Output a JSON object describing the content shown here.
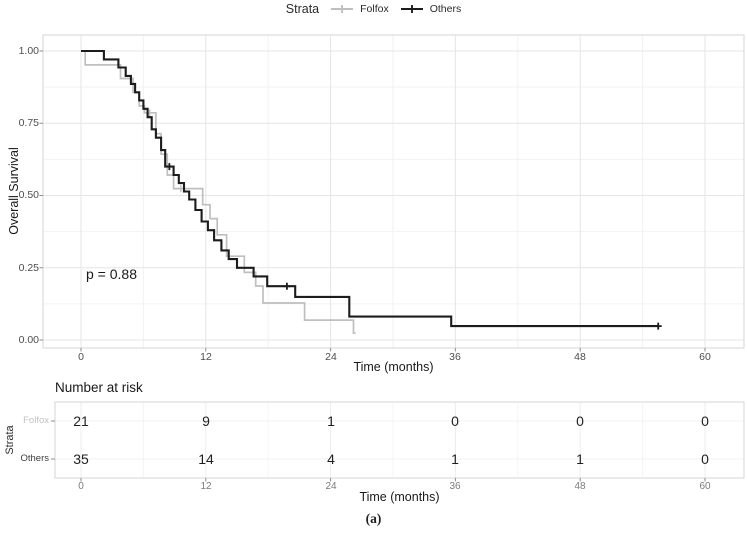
{
  "legend": {
    "title": "Strata",
    "items": [
      {
        "label": "Folfox",
        "color": "#bfbfbf"
      },
      {
        "label": "Others",
        "color": "#1c1c1c"
      }
    ]
  },
  "main_plot": {
    "ylabel": "Overall Survival",
    "xlabel": "Time (months)",
    "p_value_label": "p = 0.88",
    "y_ticks": [
      "1.00",
      "0.75",
      "0.50",
      "0.25",
      "0.00"
    ],
    "x_ticks": [
      "0",
      "12",
      "24",
      "36",
      "48",
      "60"
    ]
  },
  "risk_table": {
    "title": "Number at risk",
    "ylabel": "Strata",
    "xlabel": "Time (months)",
    "x_ticks": [
      "0",
      "12",
      "24",
      "36",
      "48",
      "60"
    ],
    "rows": [
      {
        "label": "Folfox",
        "values": [
          "21",
          "9",
          "1",
          "0",
          "0",
          "0"
        ]
      },
      {
        "label": "Others",
        "values": [
          "35",
          "14",
          "4",
          "1",
          "1",
          "0"
        ]
      }
    ]
  },
  "caption": "(a)",
  "chart_data": {
    "type": "line",
    "subtype": "kaplan-meier-step",
    "title": "",
    "xlabel": "Time (months)",
    "ylabel": "Overall Survival",
    "xlim": [
      0,
      60
    ],
    "ylim": [
      0,
      1
    ],
    "x_ticks": [
      0,
      12,
      24,
      36,
      48,
      60
    ],
    "y_ticks": [
      0,
      0.25,
      0.5,
      0.75,
      1.0
    ],
    "grid": true,
    "legend_position": "top",
    "legend_title": "Strata",
    "p_value": "p = 0.88",
    "series": [
      {
        "name": "Folfox",
        "color": "#bfbfbf",
        "start": [
          0,
          1.0
        ],
        "steps": [
          [
            0.4,
            0.952
          ],
          [
            3.8,
            0.905
          ],
          [
            5.0,
            0.857
          ],
          [
            5.6,
            0.81
          ],
          [
            6.1,
            0.786
          ],
          [
            7.2,
            0.714
          ],
          [
            7.7,
            0.643
          ],
          [
            8.3,
            0.571
          ],
          [
            8.9,
            0.524
          ],
          [
            11.7,
            0.468
          ],
          [
            12.4,
            0.42
          ],
          [
            13.1,
            0.364
          ],
          [
            14.0,
            0.29
          ],
          [
            15.7,
            0.234
          ],
          [
            16.8,
            0.187
          ],
          [
            17.5,
            0.128
          ],
          [
            21.5,
            0.069
          ],
          [
            26.2,
            0.024
          ]
        ],
        "end_month": 26.4,
        "censor_points": [
          [
            6.6,
            0.786
          ],
          [
            9.6,
            0.524
          ]
        ]
      },
      {
        "name": "Others",
        "color": "#1c1c1c",
        "start": [
          0,
          1.0
        ],
        "steps": [
          [
            2.2,
            0.971
          ],
          [
            3.6,
            0.943
          ],
          [
            4.3,
            0.914
          ],
          [
            4.8,
            0.886
          ],
          [
            5.2,
            0.857
          ],
          [
            5.6,
            0.829
          ],
          [
            6.0,
            0.8
          ],
          [
            6.4,
            0.771
          ],
          [
            6.8,
            0.729
          ],
          [
            7.2,
            0.7
          ],
          [
            7.7,
            0.657
          ],
          [
            8.1,
            0.6
          ],
          [
            8.9,
            0.571
          ],
          [
            9.4,
            0.543
          ],
          [
            9.9,
            0.514
          ],
          [
            10.4,
            0.486
          ],
          [
            11.0,
            0.45
          ],
          [
            11.6,
            0.41
          ],
          [
            12.2,
            0.38
          ],
          [
            12.8,
            0.345
          ],
          [
            13.5,
            0.31
          ],
          [
            14.2,
            0.28
          ],
          [
            15.0,
            0.25
          ],
          [
            16.6,
            0.22
          ],
          [
            17.9,
            0.186
          ],
          [
            20.6,
            0.149
          ],
          [
            25.8,
            0.081
          ],
          [
            35.6,
            0.048
          ]
        ],
        "end_month": 55.5,
        "censor_points": [
          [
            8.5,
            0.6
          ],
          [
            19.8,
            0.186
          ],
          [
            55.5,
            0.048
          ]
        ]
      }
    ],
    "number_at_risk": {
      "times": [
        0,
        12,
        24,
        36,
        48,
        60
      ],
      "Folfox": [
        21,
        9,
        1,
        0,
        0,
        0
      ],
      "Others": [
        35,
        14,
        4,
        1,
        1,
        0
      ]
    }
  }
}
